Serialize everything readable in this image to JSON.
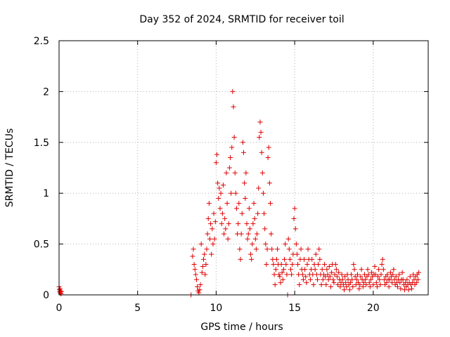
{
  "chart_data": {
    "type": "scatter",
    "title": "Day 352 of 2024, SRMTID for receiver toil",
    "xlabel": "GPS time / hours",
    "ylabel": "SRMTID / TECUs",
    "xlim": [
      0,
      23.5
    ],
    "ylim": [
      0,
      2.5
    ],
    "xticks": [
      0,
      5,
      10,
      15,
      20
    ],
    "xtick_labels": [
      "0",
      "5",
      "10",
      "15",
      "20"
    ],
    "yticks": [
      0,
      0.5,
      1,
      1.5,
      2,
      2.5
    ],
    "ytick_labels": [
      "0",
      "0.5",
      "1",
      "1.5",
      "2",
      "2.5"
    ],
    "grid": true,
    "marker": "+",
    "color": "#e00000",
    "series": [
      {
        "name": "SRMTID",
        "points": [
          [
            0.0,
            0.08
          ],
          [
            0.02,
            0.05
          ],
          [
            0.04,
            0.03
          ],
          [
            0.06,
            0.06
          ],
          [
            0.08,
            0.02
          ],
          [
            0.1,
            0.04
          ],
          [
            0.12,
            0.01
          ],
          [
            0.14,
            0.03
          ],
          [
            8.4,
            0.0
          ],
          [
            8.5,
            0.38
          ],
          [
            8.55,
            0.45
          ],
          [
            8.6,
            0.3
          ],
          [
            8.65,
            0.25
          ],
          [
            8.7,
            0.2
          ],
          [
            8.75,
            0.15
          ],
          [
            8.8,
            0.08
          ],
          [
            8.85,
            0.04
          ],
          [
            8.9,
            0.02
          ],
          [
            8.95,
            0.05
          ],
          [
            9.0,
            0.1
          ],
          [
            9.05,
            0.5
          ],
          [
            9.1,
            0.22
          ],
          [
            9.15,
            0.28
          ],
          [
            9.2,
            0.35
          ],
          [
            9.25,
            0.4
          ],
          [
            9.3,
            0.2
          ],
          [
            9.35,
            0.3
          ],
          [
            9.4,
            0.45
          ],
          [
            9.45,
            0.6
          ],
          [
            9.5,
            0.75
          ],
          [
            9.55,
            0.9
          ],
          [
            9.6,
            0.55
          ],
          [
            9.65,
            0.7
          ],
          [
            9.7,
            0.4
          ],
          [
            9.75,
            0.65
          ],
          [
            9.8,
            0.5
          ],
          [
            9.85,
            0.8
          ],
          [
            9.9,
            0.55
          ],
          [
            9.95,
            0.72
          ],
          [
            10.0,
            1.3
          ],
          [
            10.05,
            1.38
          ],
          [
            10.1,
            1.1
          ],
          [
            10.15,
            0.95
          ],
          [
            10.2,
            1.05
          ],
          [
            10.25,
            0.85
          ],
          [
            10.3,
            1.0
          ],
          [
            10.35,
            0.7
          ],
          [
            10.4,
            0.8
          ],
          [
            10.45,
            1.08
          ],
          [
            10.5,
            0.6
          ],
          [
            10.55,
            0.75
          ],
          [
            10.6,
            0.65
          ],
          [
            10.65,
            1.2
          ],
          [
            10.7,
            0.9
          ],
          [
            10.75,
            0.55
          ],
          [
            10.8,
            0.7
          ],
          [
            10.85,
            1.25
          ],
          [
            10.9,
            1.35
          ],
          [
            10.95,
            1.0
          ],
          [
            11.0,
            1.45
          ],
          [
            11.05,
            2.0
          ],
          [
            11.1,
            1.85
          ],
          [
            11.15,
            1.55
          ],
          [
            11.2,
            1.2
          ],
          [
            11.25,
            1.0
          ],
          [
            11.3,
            0.85
          ],
          [
            11.35,
            0.6
          ],
          [
            11.4,
            0.7
          ],
          [
            11.45,
            0.9
          ],
          [
            11.5,
            0.45
          ],
          [
            11.55,
            0.35
          ],
          [
            11.6,
            0.6
          ],
          [
            11.65,
            0.8
          ],
          [
            11.7,
            1.5
          ],
          [
            11.75,
            1.4
          ],
          [
            11.8,
            1.1
          ],
          [
            11.85,
            0.95
          ],
          [
            11.9,
            1.2
          ],
          [
            11.95,
            0.7
          ],
          [
            12.0,
            0.55
          ],
          [
            12.05,
            0.6
          ],
          [
            12.1,
            0.85
          ],
          [
            12.15,
            0.65
          ],
          [
            12.2,
            0.4
          ],
          [
            12.25,
            0.35
          ],
          [
            12.3,
            0.5
          ],
          [
            12.35,
            0.7
          ],
          [
            12.4,
            0.9
          ],
          [
            12.45,
            0.75
          ],
          [
            12.5,
            0.55
          ],
          [
            12.55,
            0.45
          ],
          [
            12.6,
            0.6
          ],
          [
            12.65,
            0.8
          ],
          [
            12.7,
            1.05
          ],
          [
            12.75,
            1.55
          ],
          [
            12.8,
            1.7
          ],
          [
            12.85,
            1.6
          ],
          [
            12.9,
            1.4
          ],
          [
            12.95,
            1.2
          ],
          [
            13.0,
            1.0
          ],
          [
            13.05,
            0.8
          ],
          [
            13.1,
            0.65
          ],
          [
            13.15,
            0.5
          ],
          [
            13.2,
            0.3
          ],
          [
            13.25,
            0.45
          ],
          [
            13.3,
            1.35
          ],
          [
            13.35,
            1.45
          ],
          [
            13.4,
            1.1
          ],
          [
            13.45,
            0.9
          ],
          [
            13.5,
            0.6
          ],
          [
            13.55,
            0.45
          ],
          [
            13.6,
            0.35
          ],
          [
            13.65,
            0.3
          ],
          [
            13.7,
            0.2
          ],
          [
            13.75,
            0.1
          ],
          [
            13.8,
            0.25
          ],
          [
            13.85,
            0.35
          ],
          [
            13.9,
            0.45
          ],
          [
            13.95,
            0.3
          ],
          [
            14.0,
            0.2
          ],
          [
            14.05,
            0.18
          ],
          [
            14.1,
            0.12
          ],
          [
            14.15,
            0.3
          ],
          [
            14.2,
            0.22
          ],
          [
            14.25,
            0.15
          ],
          [
            14.3,
            0.25
          ],
          [
            14.35,
            0.35
          ],
          [
            14.4,
            0.5
          ],
          [
            14.45,
            0.3
          ],
          [
            14.5,
            0.2
          ],
          [
            14.55,
            0.0
          ],
          [
            14.6,
            0.55
          ],
          [
            14.65,
            0.45
          ],
          [
            14.7,
            0.35
          ],
          [
            14.75,
            0.25
          ],
          [
            14.8,
            0.2
          ],
          [
            14.85,
            0.3
          ],
          [
            14.9,
            0.4
          ],
          [
            14.95,
            0.75
          ],
          [
            15.0,
            0.85
          ],
          [
            15.05,
            0.65
          ],
          [
            15.1,
            0.5
          ],
          [
            15.15,
            0.4
          ],
          [
            15.2,
            0.3
          ],
          [
            15.25,
            0.2
          ],
          [
            15.3,
            0.1
          ],
          [
            15.35,
            0.35
          ],
          [
            15.4,
            0.45
          ],
          [
            15.45,
            0.25
          ],
          [
            15.5,
            0.2
          ],
          [
            15.55,
            0.15
          ],
          [
            15.6,
            0.35
          ],
          [
            15.65,
            0.25
          ],
          [
            15.7,
            0.18
          ],
          [
            15.75,
            0.12
          ],
          [
            15.8,
            0.3
          ],
          [
            15.85,
            0.45
          ],
          [
            15.9,
            0.35
          ],
          [
            15.95,
            0.2
          ],
          [
            16.0,
            0.15
          ],
          [
            16.05,
            0.25
          ],
          [
            16.1,
            0.35
          ],
          [
            16.15,
            0.2
          ],
          [
            16.2,
            0.1
          ],
          [
            16.25,
            0.3
          ],
          [
            16.3,
            0.25
          ],
          [
            16.35,
            0.4
          ],
          [
            16.4,
            0.2
          ],
          [
            16.45,
            0.15
          ],
          [
            16.5,
            0.3
          ],
          [
            16.55,
            0.45
          ],
          [
            16.6,
            0.35
          ],
          [
            16.65,
            0.2
          ],
          [
            16.7,
            0.1
          ],
          [
            16.75,
            0.25
          ],
          [
            16.8,
            0.15
          ],
          [
            16.85,
            0.2
          ],
          [
            16.9,
            0.3
          ],
          [
            16.95,
            0.18
          ],
          [
            17.0,
            0.1
          ],
          [
            17.05,
            0.25
          ],
          [
            17.1,
            0.2
          ],
          [
            17.15,
            0.15
          ],
          [
            17.2,
            0.28
          ],
          [
            17.25,
            0.18
          ],
          [
            17.3,
            0.08
          ],
          [
            17.35,
            0.22
          ],
          [
            17.4,
            0.3
          ],
          [
            17.45,
            0.15
          ],
          [
            17.5,
            0.12
          ],
          [
            17.55,
            0.2
          ],
          [
            17.6,
            0.3
          ],
          [
            17.65,
            0.25
          ],
          [
            17.7,
            0.18
          ],
          [
            17.75,
            0.1
          ],
          [
            17.8,
            0.22
          ],
          [
            17.85,
            0.15
          ],
          [
            17.9,
            0.08
          ],
          [
            17.95,
            0.12
          ],
          [
            18.0,
            0.2
          ],
          [
            18.05,
            0.15
          ],
          [
            18.1,
            0.1
          ],
          [
            18.15,
            0.05
          ],
          [
            18.2,
            0.18
          ],
          [
            18.25,
            0.12
          ],
          [
            18.3,
            0.08
          ],
          [
            18.35,
            0.2
          ],
          [
            18.4,
            0.15
          ],
          [
            18.45,
            0.1
          ],
          [
            18.5,
            0.05
          ],
          [
            18.55,
            0.12
          ],
          [
            18.6,
            0.2
          ],
          [
            18.65,
            0.15
          ],
          [
            18.7,
            0.08
          ],
          [
            18.75,
            0.3
          ],
          [
            18.8,
            0.25
          ],
          [
            18.85,
            0.18
          ],
          [
            18.9,
            0.1
          ],
          [
            18.95,
            0.15
          ],
          [
            19.0,
            0.2
          ],
          [
            19.05,
            0.12
          ],
          [
            19.1,
            0.06
          ],
          [
            19.15,
            0.1
          ],
          [
            19.2,
            0.18
          ],
          [
            19.25,
            0.25
          ],
          [
            19.3,
            0.15
          ],
          [
            19.35,
            0.08
          ],
          [
            19.4,
            0.12
          ],
          [
            19.45,
            0.2
          ],
          [
            19.5,
            0.15
          ],
          [
            19.55,
            0.1
          ],
          [
            19.6,
            0.18
          ],
          [
            19.65,
            0.25
          ],
          [
            19.7,
            0.2
          ],
          [
            19.75,
            0.12
          ],
          [
            19.8,
            0.08
          ],
          [
            19.85,
            0.15
          ],
          [
            19.9,
            0.22
          ],
          [
            19.95,
            0.18
          ],
          [
            20.0,
            0.1
          ],
          [
            20.05,
            0.2
          ],
          [
            20.1,
            0.28
          ],
          [
            20.15,
            0.2
          ],
          [
            20.2,
            0.12
          ],
          [
            20.25,
            0.08
          ],
          [
            20.3,
            0.18
          ],
          [
            20.35,
            0.25
          ],
          [
            20.4,
            0.15
          ],
          [
            20.45,
            0.1
          ],
          [
            20.5,
            0.2
          ],
          [
            20.55,
            0.3
          ],
          [
            20.6,
            0.35
          ],
          [
            20.65,
            0.25
          ],
          [
            20.7,
            0.15
          ],
          [
            20.75,
            0.1
          ],
          [
            20.8,
            0.18
          ],
          [
            20.85,
            0.12
          ],
          [
            20.9,
            0.2
          ],
          [
            20.95,
            0.15
          ],
          [
            21.0,
            0.08
          ],
          [
            21.05,
            0.15
          ],
          [
            21.1,
            0.22
          ],
          [
            21.15,
            0.18
          ],
          [
            21.2,
            0.12
          ],
          [
            21.25,
            0.2
          ],
          [
            21.3,
            0.25
          ],
          [
            21.35,
            0.15
          ],
          [
            21.4,
            0.1
          ],
          [
            21.45,
            0.18
          ],
          [
            21.5,
            0.12
          ],
          [
            21.55,
            0.08
          ],
          [
            21.6,
            0.15
          ],
          [
            21.65,
            0.2
          ],
          [
            21.7,
            0.12
          ],
          [
            21.75,
            0.06
          ],
          [
            21.8,
            0.15
          ],
          [
            21.85,
            0.22
          ],
          [
            21.9,
            0.15
          ],
          [
            21.95,
            0.1
          ],
          [
            22.0,
            0.05
          ],
          [
            22.05,
            0.12
          ],
          [
            22.1,
            0.08
          ],
          [
            22.15,
            0.15
          ],
          [
            22.2,
            0.1
          ],
          [
            22.25,
            0.05
          ],
          [
            22.3,
            0.12
          ],
          [
            22.35,
            0.18
          ],
          [
            22.4,
            0.1
          ],
          [
            22.45,
            0.06
          ],
          [
            22.5,
            0.12
          ],
          [
            22.55,
            0.2
          ],
          [
            22.6,
            0.15
          ],
          [
            22.65,
            0.1
          ],
          [
            22.7,
            0.18
          ],
          [
            22.75,
            0.12
          ],
          [
            22.8,
            0.2
          ],
          [
            22.85,
            0.15
          ],
          [
            22.9,
            0.22
          ]
        ]
      }
    ]
  }
}
